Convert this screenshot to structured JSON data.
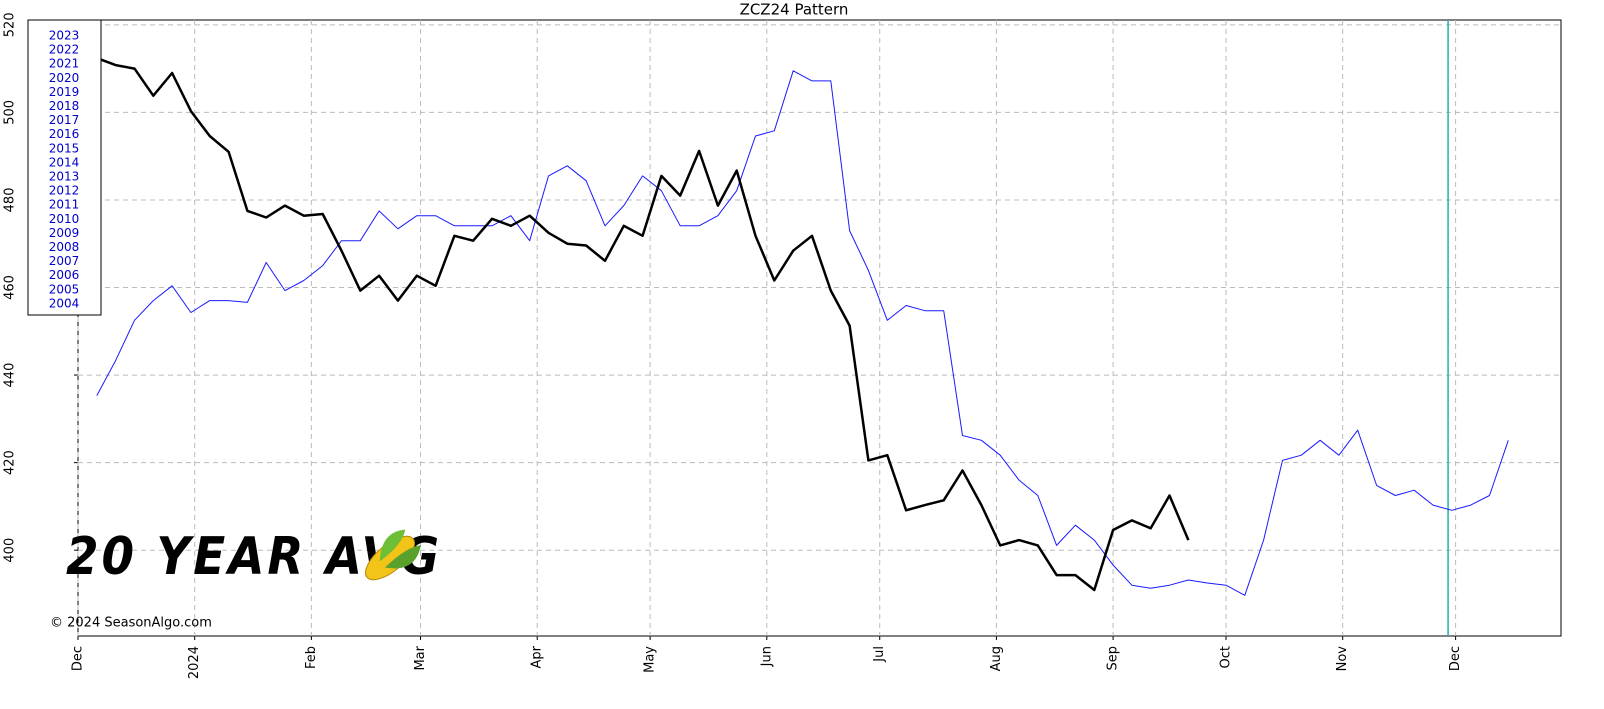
{
  "chart_data": {
    "type": "line",
    "title": "ZCZ24 Pattern",
    "x": [
      5,
      10,
      15,
      20,
      25,
      30,
      35,
      40,
      45,
      50,
      55,
      60,
      65,
      70,
      75,
      80,
      85,
      90,
      95,
      100,
      105,
      110,
      115,
      120,
      125,
      130,
      135,
      140,
      145,
      150,
      155,
      160,
      165,
      170,
      175,
      180,
      185,
      190,
      195,
      200,
      205,
      210,
      215,
      220,
      225,
      230,
      235,
      240,
      245,
      250,
      255,
      260,
      265,
      270,
      275,
      280,
      285,
      290,
      295,
      300,
      305,
      310,
      315,
      320,
      325,
      330,
      335,
      340,
      345,
      350,
      355,
      360,
      365,
      370,
      375,
      380
    ],
    "series": [
      {
        "color": "#000000",
        "values": [
          512.4,
          510.8,
          510,
          503.8,
          509,
          500.3,
          494.6,
          491,
          477.5,
          476,
          478.7,
          476.4,
          476.8,
          468.4,
          459.3,
          462.7,
          457,
          462.7,
          460.4,
          471.8,
          470.7,
          475.7,
          474.1,
          476.4,
          472.5,
          470,
          469.6,
          466.1,
          474.1,
          471.8,
          485.5,
          481,
          491.2,
          478.7,
          486.7,
          471.8,
          461.6,
          468.4,
          471.8,
          459.3,
          451.3,
          420.5,
          421.7,
          409.1,
          410.3,
          411.4,
          418.2,
          410.3,
          401.1,
          402.3,
          401.1,
          394.3,
          394.3,
          390.9,
          404.6,
          406.8,
          405,
          412.5,
          402.3,
          null,
          null,
          null,
          null,
          null,
          null,
          null,
          null,
          null,
          null,
          null,
          null,
          null,
          null,
          null,
          null,
          null
        ]
      },
      {
        "color": "#1a1aff",
        "values": [
          435.3,
          443.3,
          452.5,
          457,
          460.4,
          454.3,
          457,
          457,
          456.6,
          465.7,
          459.3,
          461.6,
          465,
          470.7,
          470.7,
          477.5,
          473.4,
          476.4,
          476.4,
          474.1,
          474.1,
          474.1,
          476.4,
          470.7,
          485.5,
          487.8,
          484.4,
          474.1,
          478.7,
          485.5,
          482.1,
          474.1,
          474.1,
          476.4,
          482.1,
          494.6,
          495.8,
          509.5,
          507.2,
          507.2,
          473,
          463.9,
          452.5,
          455.9,
          454.7,
          454.7,
          426.2,
          425.1,
          421.7,
          416,
          412.5,
          401.1,
          405.7,
          402.3,
          396.6,
          392,
          391.3,
          392,
          393.2,
          392.5,
          392,
          389.7,
          402.3,
          420.5,
          421.7,
          425.1,
          421.7,
          427.4,
          414.8,
          412.5,
          413.7,
          410.3,
          409.1,
          410.3,
          412.5,
          425.1
        ]
      }
    ],
    "xlim": [
      0,
      394
    ],
    "xticks": [
      {
        "value": 0,
        "label": "Dec"
      },
      {
        "value": 31,
        "label": "2024"
      },
      {
        "value": 62,
        "label": "Feb"
      },
      {
        "value": 91,
        "label": "Mar"
      },
      {
        "value": 122,
        "label": "Apr"
      },
      {
        "value": 152,
        "label": "May"
      },
      {
        "value": 183,
        "label": "Jun"
      },
      {
        "value": 213,
        "label": "Jul"
      },
      {
        "value": 244,
        "label": "Aug"
      },
      {
        "value": 275,
        "label": "Sep"
      },
      {
        "value": 305,
        "label": "Oct"
      },
      {
        "value": 336,
        "label": "Nov"
      },
      {
        "value": 366,
        "label": "Dec"
      }
    ],
    "ylim": [
      380.4,
      521.1
    ],
    "yticks": [
      400,
      420,
      440,
      460,
      480,
      500,
      520
    ],
    "grid": true,
    "vline": 364,
    "vline_color": "#20b2aa",
    "legend_years": [
      "2023",
      "2022",
      "2021",
      "2020",
      "2019",
      "2018",
      "2017",
      "2016",
      "2015",
      "2014",
      "2013",
      "2012",
      "2011",
      "2010",
      "2009",
      "2008",
      "2007",
      "2006",
      "2005",
      "2004"
    ],
    "annotation": "20 YEAR AVG",
    "copyright": "© 2024 SeasonAlgo.com"
  }
}
